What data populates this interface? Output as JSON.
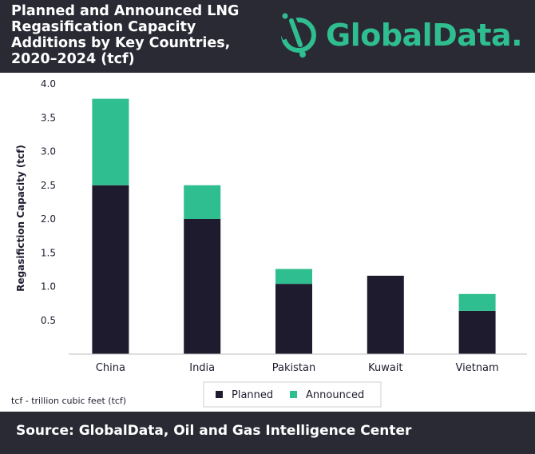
{
  "header": {
    "title_lines": [
      "Planned and Announced LNG",
      "Regasification Capacity",
      "Additions by Key Countries,",
      "2020–2024 (tcf)"
    ],
    "logo_text": "GlobalData."
  },
  "note": "tcf - trillion cubic feet (tcf)",
  "footer": {
    "source": "Source: GlobalData, Oil and Gas Intelligence Center"
  },
  "colors": {
    "planned": "#1e1b2e",
    "announced": "#2fbe8f",
    "header_bg": "#2a2a35"
  },
  "chart_data": {
    "type": "bar",
    "stacked": true,
    "categories": [
      "China",
      "India",
      "Pakistan",
      "Kuwait",
      "Vietnam"
    ],
    "series": [
      {
        "name": "Planned",
        "values": [
          2.5,
          2.0,
          1.04,
          1.16,
          0.64
        ]
      },
      {
        "name": "Announced",
        "values": [
          1.28,
          0.5,
          0.22,
          0.0,
          0.25
        ]
      }
    ],
    "ylabel": "Regasifiction Capacity (tcf)",
    "ylim": [
      0,
      4.0
    ],
    "yticks": [
      "0.5",
      "1.0",
      "1.5",
      "2.0",
      "2.5",
      "3.0",
      "3.5",
      "4.0"
    ],
    "ytick_values": [
      0.5,
      1.0,
      1.5,
      2.0,
      2.5,
      3.0,
      3.5,
      4.0
    ],
    "legend_position": "bottom"
  }
}
